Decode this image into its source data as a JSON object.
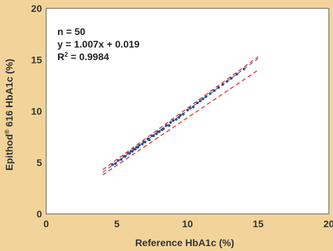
{
  "chart_data": {
    "type": "scatter",
    "xlabel": "Reference HbA1c (%)",
    "ylabel_brand": "Epithod",
    "ylabel_reg": "®",
    "ylabel_rest": " 616 HbA1c (%)",
    "xlim": [
      0,
      20
    ],
    "ylim": [
      0,
      20
    ],
    "xticks": [
      "0",
      "5",
      "10",
      "15",
      "20"
    ],
    "yticks": [
      "0",
      "5",
      "10",
      "15",
      "20"
    ],
    "annotations": {
      "n": "n = 50",
      "equation": "y = 1.007x + 0.019",
      "r2_prefix": "R",
      "r2_sup": "2",
      "r2_value": " = 0.9984"
    },
    "regression": {
      "slope": 1.007,
      "intercept": 0.019,
      "x_range": [
        4.0,
        15.0
      ]
    },
    "confidence_band": {
      "upper": {
        "x": [
          4.0,
          15.0
        ],
        "y": [
          4.3,
          15.3
        ]
      },
      "lower": {
        "x": [
          4.0,
          15.0
        ],
        "y": [
          3.8,
          14.0
        ]
      }
    },
    "points": [
      [
        4.7,
        4.8
      ],
      [
        4.9,
        4.9
      ],
      [
        5.1,
        5.2
      ],
      [
        5.3,
        5.3
      ],
      [
        5.5,
        5.6
      ],
      [
        5.6,
        5.6
      ],
      [
        5.8,
        5.9
      ],
      [
        5.9,
        5.9
      ],
      [
        6.0,
        6.1
      ],
      [
        6.1,
        6.1
      ],
      [
        6.2,
        6.3
      ],
      [
        6.3,
        6.3
      ],
      [
        6.4,
        6.5
      ],
      [
        6.5,
        6.5
      ],
      [
        6.6,
        6.7
      ],
      [
        6.8,
        6.8
      ],
      [
        6.9,
        7.0
      ],
      [
        7.0,
        7.0
      ],
      [
        7.2,
        7.3
      ],
      [
        7.3,
        7.2
      ],
      [
        7.5,
        7.6
      ],
      [
        7.6,
        7.6
      ],
      [
        7.8,
        7.8
      ],
      [
        7.9,
        8.0
      ],
      [
        8.0,
        8.0
      ],
      [
        8.2,
        8.2
      ],
      [
        8.3,
        8.3
      ],
      [
        8.5,
        8.6
      ],
      [
        8.7,
        8.6
      ],
      [
        8.8,
        8.9
      ],
      [
        9.0,
        9.1
      ],
      [
        9.2,
        9.2
      ],
      [
        9.4,
        9.4
      ],
      [
        9.5,
        9.6
      ],
      [
        9.7,
        9.7
      ],
      [
        10.0,
        10.1
      ],
      [
        10.2,
        10.3
      ],
      [
        10.4,
        10.4
      ],
      [
        10.7,
        10.8
      ],
      [
        10.9,
        11.0
      ],
      [
        11.1,
        11.2
      ],
      [
        11.3,
        11.4
      ],
      [
        11.6,
        11.7
      ],
      [
        11.9,
        12.0
      ],
      [
        12.2,
        12.3
      ],
      [
        12.5,
        12.6
      ],
      [
        12.8,
        12.9
      ],
      [
        13.1,
        13.2
      ],
      [
        13.5,
        13.6
      ],
      [
        14.0,
        14.1
      ]
    ],
    "colors": {
      "background": "#f2d49a",
      "plot_area": "#ffffff",
      "points": "#2c4f8c",
      "regression": "#5b6fa8",
      "confidence": "#e0342c",
      "text": "#333333"
    }
  }
}
